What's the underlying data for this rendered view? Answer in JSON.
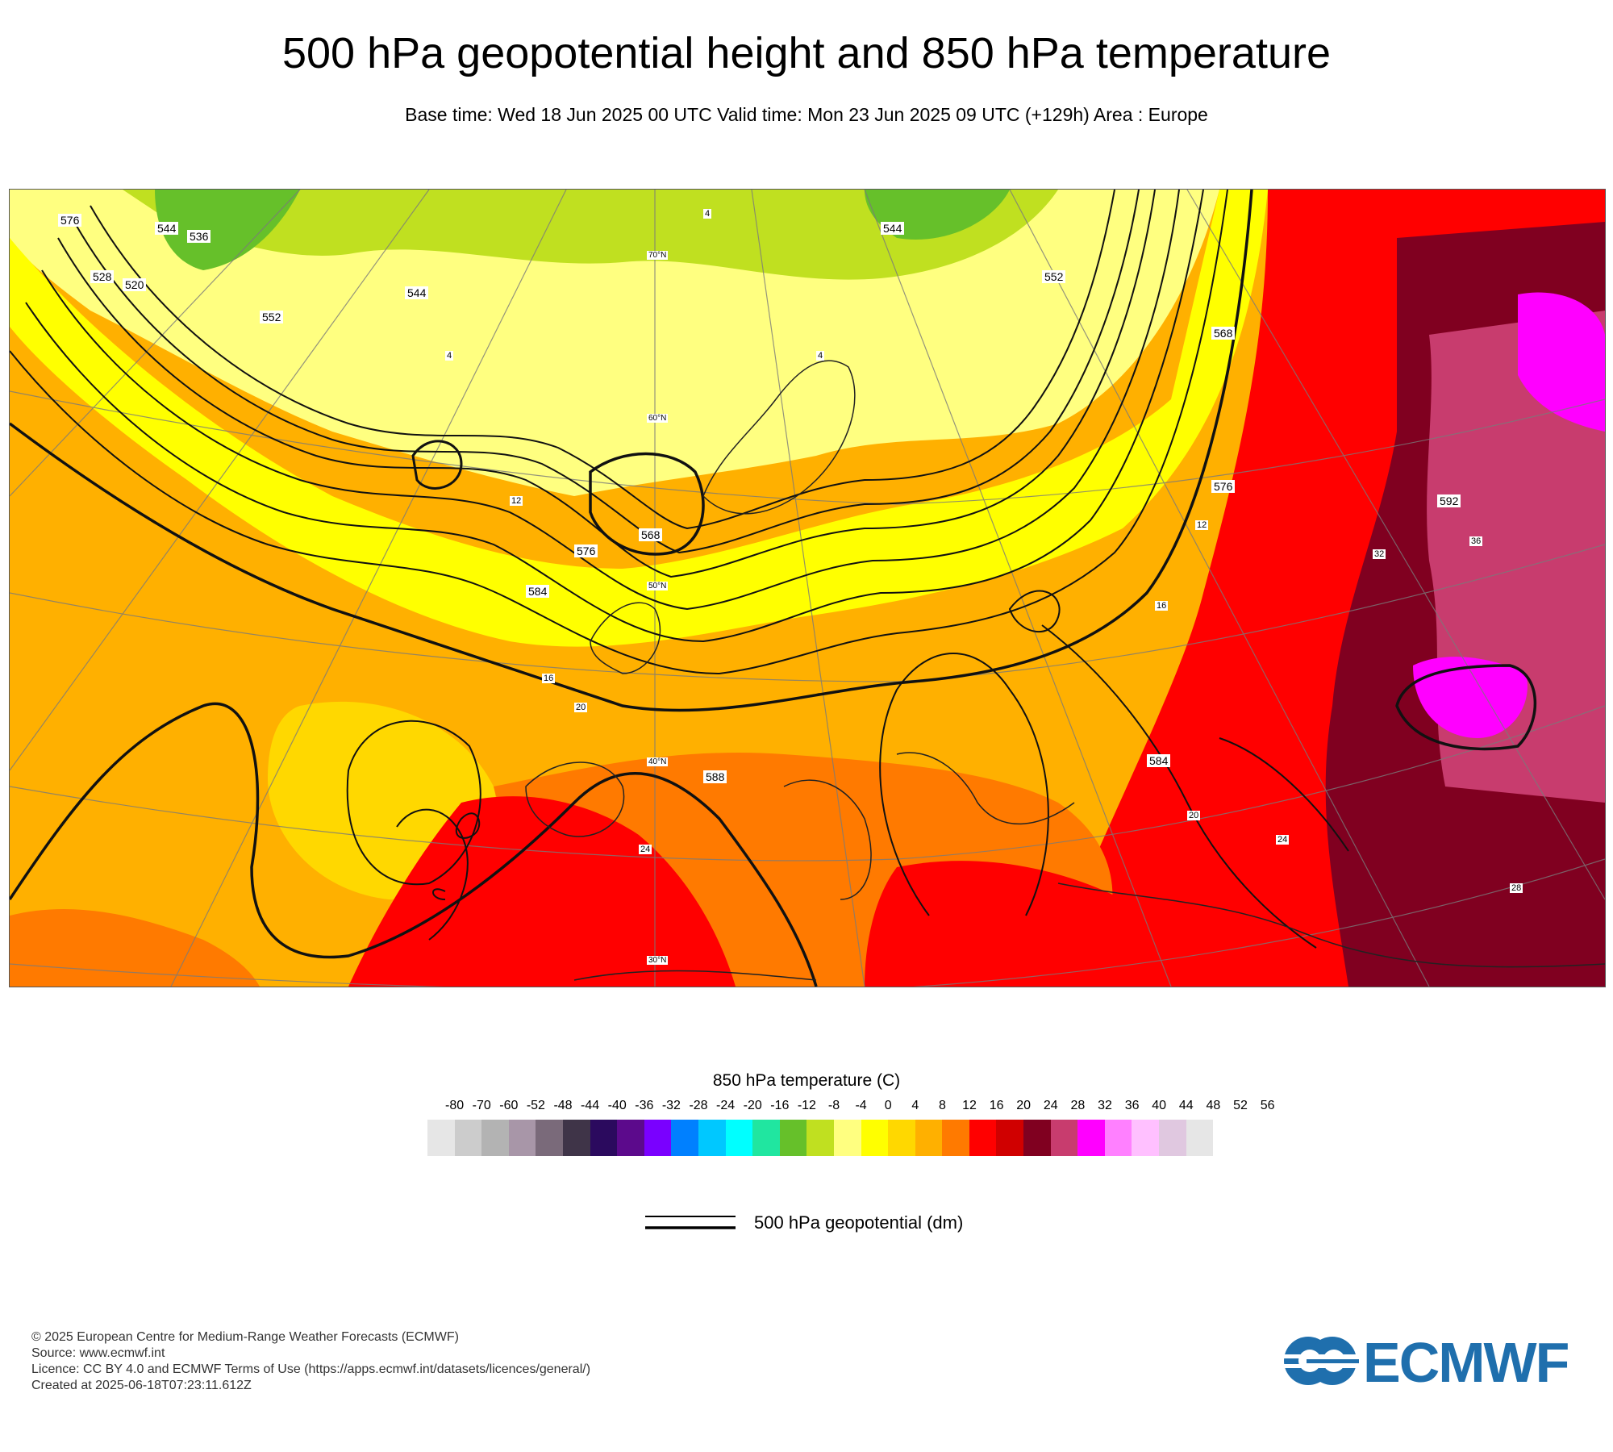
{
  "header": {
    "title": "500 hPa geopotential height and 850 hPa temperature",
    "subtitle": "Base time: Wed 18 Jun 2025 00 UTC Valid time: Mon 23 Jun 2025 09 UTC (+129h) Area : Europe"
  },
  "map": {
    "contour_labels": [
      "576",
      "544",
      "536",
      "528",
      "520",
      "552",
      "544",
      "544",
      "552",
      "568",
      "576",
      "568",
      "576",
      "584",
      "592",
      "584",
      "588",
      "70°N",
      "60°N",
      "50°N",
      "40°N",
      "30°N"
    ],
    "temp_labels": [
      "4",
      "4",
      "4",
      "12",
      "16",
      "20",
      "24",
      "28",
      "32",
      "36",
      "12",
      "16",
      "20",
      "28",
      "24"
    ]
  },
  "legend": {
    "title": "850 hPa temperature (C)",
    "ticks": [
      "-80",
      "-70",
      "-60",
      "-52",
      "-48",
      "-44",
      "-40",
      "-36",
      "-32",
      "-28",
      "-24",
      "-20",
      "-16",
      "-12",
      "-8",
      "-4",
      "0",
      "4",
      "8",
      "12",
      "16",
      "20",
      "24",
      "28",
      "32",
      "36",
      "40",
      "44",
      "48",
      "52",
      "56"
    ],
    "colors": [
      "#e6e6e6",
      "#cccccc",
      "#b3b3b3",
      "#a896a8",
      "#7a6a7a",
      "#3f3448",
      "#2b0a5e",
      "#5c0a8c",
      "#7a00ff",
      "#0080ff",
      "#00c8ff",
      "#00ffff",
      "#20e6a0",
      "#66c02a",
      "#c0e020",
      "#ffff80",
      "#ffff00",
      "#ffd800",
      "#ffb000",
      "#ff7a00",
      "#ff0000",
      "#d00000",
      "#800020",
      "#c83c6e",
      "#ff00ff",
      "#ff80ff",
      "#ffc0ff",
      "#e0c8e0",
      "#e6e6e6"
    ],
    "line_label": "500 hPa geopotential (dm)"
  },
  "footer": {
    "line1": "© 2025 European Centre for Medium-Range Weather Forecasts (ECMWF)",
    "line2": "Source: www.ecmwf.int",
    "line3": "Licence: CC BY 4.0 and ECMWF Terms of Use (https://apps.ecmwf.int/datasets/licences/general/)",
    "line4": "Created at 2025-06-18T07:23:11.612Z"
  },
  "logo": {
    "text": "ECMWF",
    "color": "#1f6fad"
  }
}
